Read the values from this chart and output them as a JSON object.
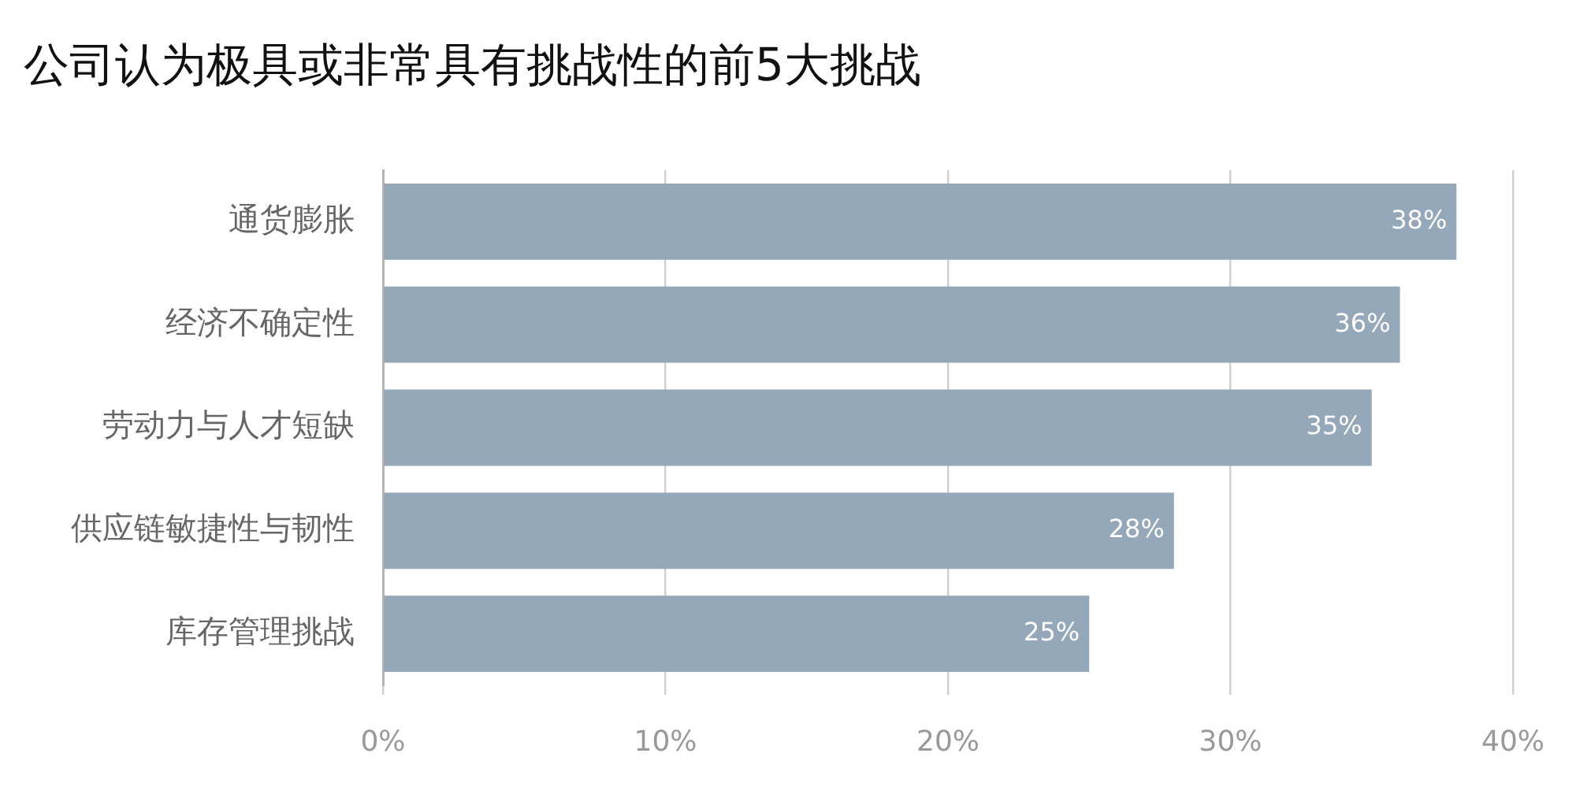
{
  "chart_data": {
    "type": "bar",
    "orientation": "horizontal",
    "title": "公司认为极具或非常具有挑战性的前5大挑战",
    "categories": [
      "通货膨胀",
      "经济不确定性",
      "劳动力与人才短缺",
      "供应链敏捷性与韧性",
      "库存管理挑战"
    ],
    "values": [
      38,
      36,
      35,
      28,
      25
    ],
    "color": "#94a8ba",
    "value_labels": [
      "38%",
      "36%",
      "35%",
      "28%",
      "25%"
    ],
    "xlim": [
      0,
      40
    ],
    "xticks": [
      {
        "value": 0,
        "label": "0%"
      },
      {
        "value": 10,
        "label": "10%"
      },
      {
        "value": 20,
        "label": "20%"
      },
      {
        "value": 30,
        "label": "30%"
      },
      {
        "value": 40,
        "label": "40%"
      }
    ],
    "grid": "x",
    "legend": false
  }
}
